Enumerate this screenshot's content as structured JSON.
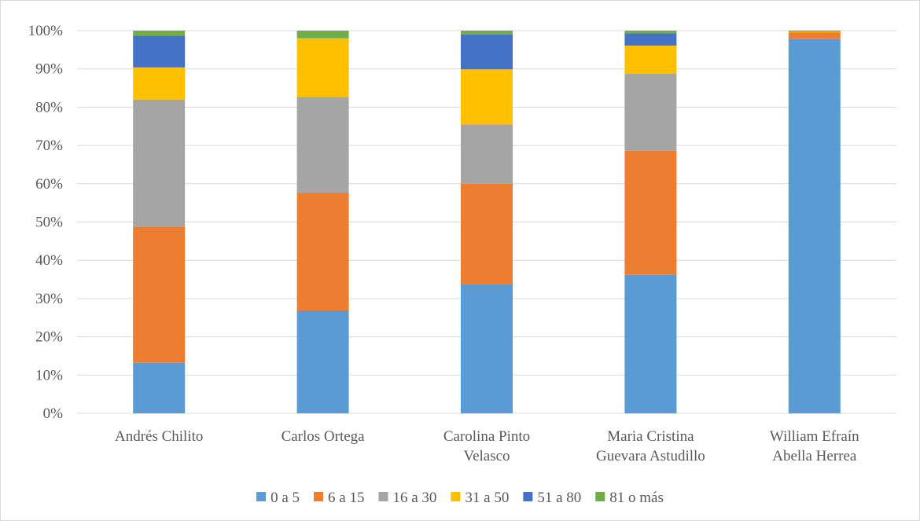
{
  "chart_data": {
    "type": "bar",
    "stacked": true,
    "percent_stacked": true,
    "categories": [
      [
        "Andrés Chilito"
      ],
      [
        "Carlos Ortega"
      ],
      [
        "Carolina Pinto",
        "Velasco"
      ],
      [
        "Maria Cristina",
        "Guevara Astudillo"
      ],
      [
        "William Efraín",
        "Abella Herrea"
      ]
    ],
    "series": [
      {
        "name": "0 a 5",
        "color": "#5b9bd5",
        "values": [
          13.2,
          26.9,
          33.7,
          36.2,
          97.8
        ]
      },
      {
        "name": "6 a 15",
        "color": "#ed7d31",
        "values": [
          35.6,
          30.7,
          26.3,
          32.4,
          1.7
        ]
      },
      {
        "name": "16 a 30",
        "color": "#a5a5a5",
        "values": [
          33.2,
          25.1,
          15.5,
          20.1,
          0.1
        ]
      },
      {
        "name": "31 a 50",
        "color": "#ffc000",
        "values": [
          8.4,
          15.3,
          14.4,
          7.4,
          0.2
        ]
      },
      {
        "name": "51 a 80",
        "color": "#4472c4",
        "values": [
          8.3,
          0.0,
          9.1,
          3.2,
          0.1
        ]
      },
      {
        "name": "81 o más",
        "color": "#70ad47",
        "values": [
          1.3,
          2.0,
          1.0,
          0.7,
          0.1
        ]
      }
    ],
    "yticks": [
      "0%",
      "10%",
      "20%",
      "30%",
      "40%",
      "50%",
      "60%",
      "70%",
      "80%",
      "90%",
      "100%"
    ],
    "ylim": [
      0,
      100
    ],
    "grid": true,
    "legend_position": "bottom",
    "title": "",
    "xlabel": "",
    "ylabel": ""
  }
}
